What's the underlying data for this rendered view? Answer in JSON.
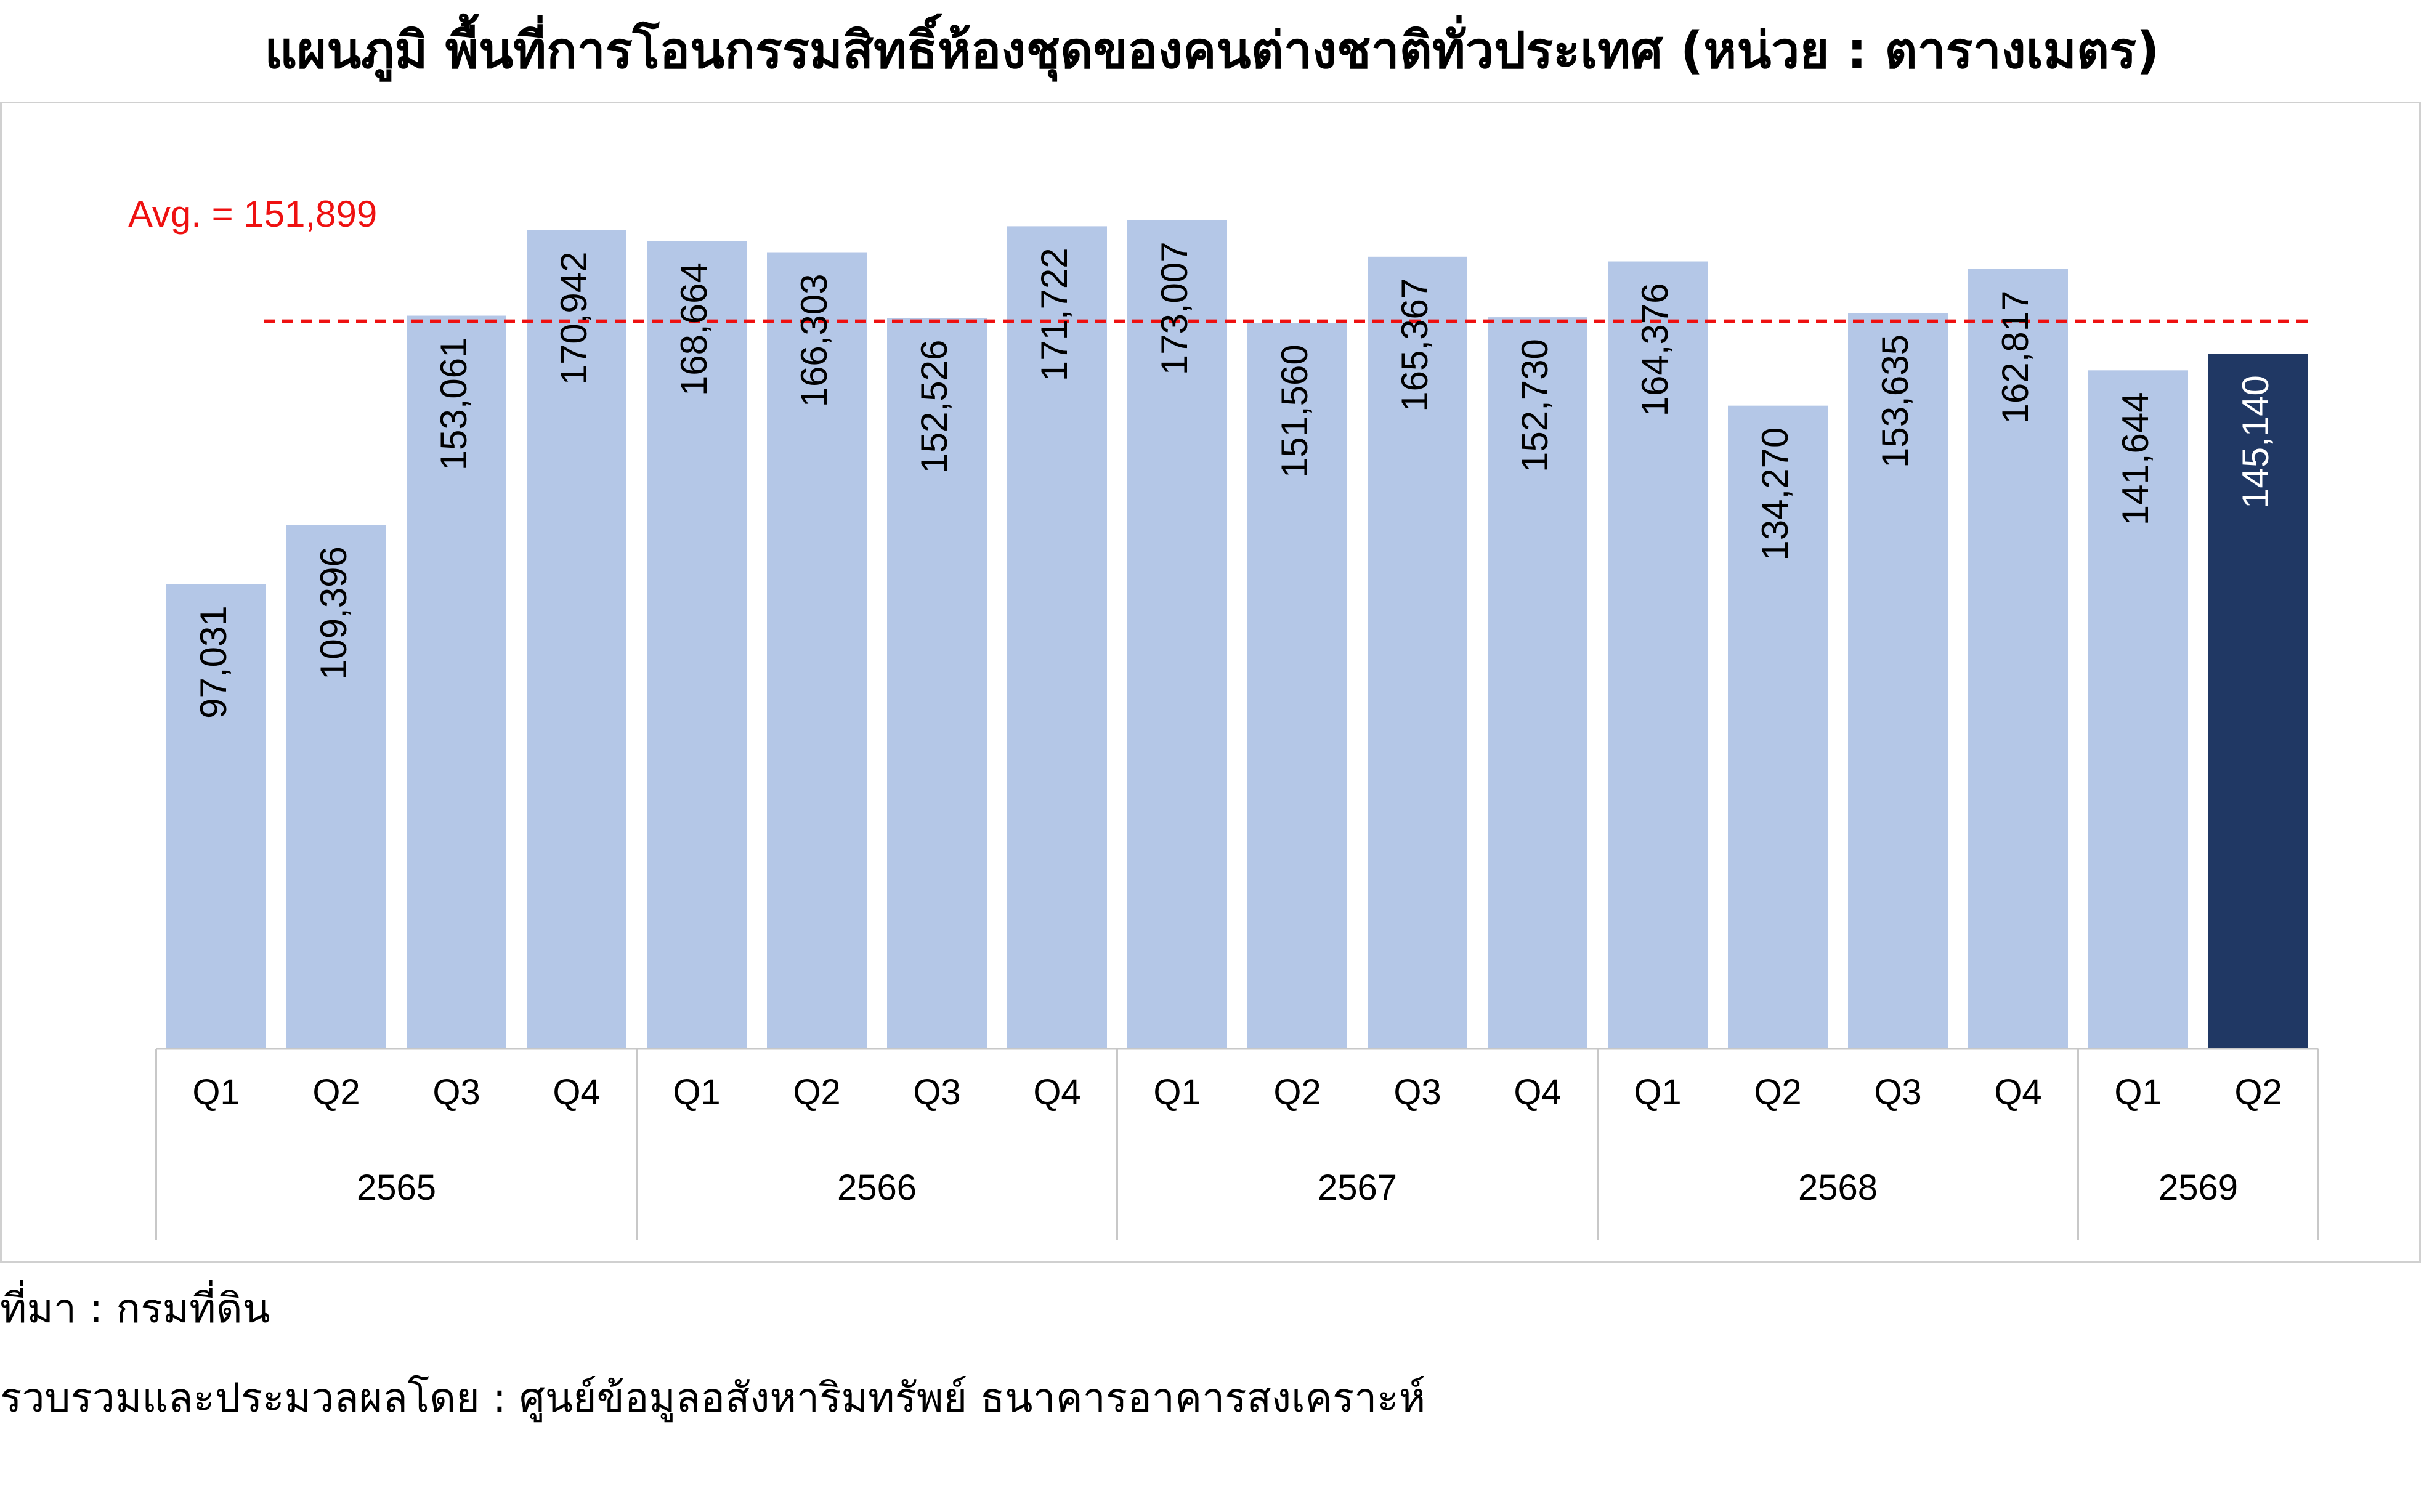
{
  "title": "แผนภูมิ พื้นที่การโอนกรรมสิทธิ์ห้องชุดของคนต่างชาติทั่วประเทศ (หน่วย : ตารางเมตร)",
  "footer": {
    "source": "ที่มา : กรมที่ดิน",
    "compiled_by": "รวบรวมและประมวลผลโดย : ศูนย์ข้อมูลอสังหาริมทรัพย์ ธนาคารอาคารสงเคราะห์"
  },
  "chart_data": {
    "type": "bar",
    "title": "แผนภูมิ พื้นที่การโอนกรรมสิทธิ์ห้องชุดของคนต่างชาติทั่วประเทศ (หน่วย : ตารางเมตร)",
    "xlabel": "",
    "ylabel": "",
    "ylim": [
      0,
      180000
    ],
    "grid": false,
    "categories": [
      "Q1",
      "Q2",
      "Q3",
      "Q4",
      "Q1",
      "Q2",
      "Q3",
      "Q4",
      "Q1",
      "Q2",
      "Q3",
      "Q4",
      "Q1",
      "Q2",
      "Q3",
      "Q4",
      "Q1",
      "Q2"
    ],
    "year_groups": [
      {
        "label": "2565",
        "count": 4
      },
      {
        "label": "2566",
        "count": 4
      },
      {
        "label": "2567",
        "count": 4
      },
      {
        "label": "2568",
        "count": 4
      },
      {
        "label": "2569",
        "count": 2
      }
    ],
    "values": [
      97031,
      109396,
      153061,
      170942,
      168664,
      166303,
      152526,
      171722,
      173007,
      151560,
      165367,
      152730,
      164376,
      134270,
      153635,
      162817,
      141644,
      145140
    ],
    "value_labels": [
      "97,031",
      "109,396",
      "153,061",
      "170,942",
      "168,664",
      "166,303",
      "152,526",
      "171,722",
      "173,007",
      "151,560",
      "165,367",
      "152,730",
      "164,376",
      "134,270",
      "153,635",
      "162,817",
      "141,644",
      "145,140"
    ],
    "highlight_index": 17,
    "average": {
      "value": 151899,
      "label": "Avg. = 151,899",
      "color": "#ee1111"
    },
    "colors": {
      "bar": "#b4c7e7",
      "highlight": "#203864",
      "label": "#000000",
      "highlight_label": "#ffffff",
      "axis": "#c8c8c8"
    }
  }
}
